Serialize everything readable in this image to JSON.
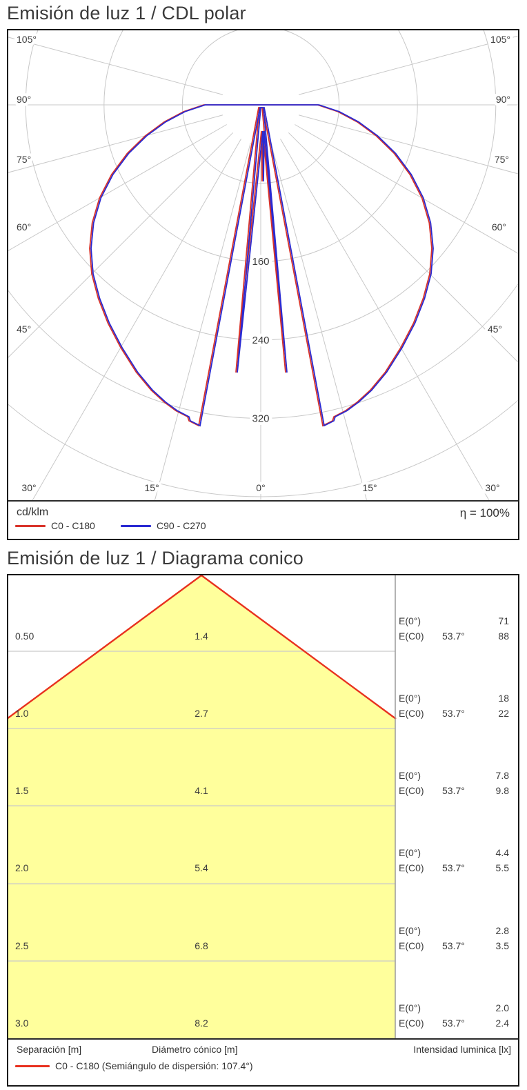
{
  "titles": {
    "polar": "Emisión de luz 1 / CDL polar",
    "cone": "Emisión de luz 1 / Diagrama conico"
  },
  "polar": {
    "unit": "cd/klm",
    "efficiency": "η = 100%",
    "legend": [
      {
        "label": "C0 - C180",
        "color": "#d9342b"
      },
      {
        "label": "C90 - C270",
        "color": "#2a2ad2"
      }
    ],
    "ring_labels": [
      "160",
      "240",
      "320"
    ],
    "angle_labels_left": [
      "105°",
      "90°",
      "75°",
      "60°",
      "45°"
    ],
    "angle_labels_right": [
      "105°",
      "90°",
      "75°",
      "60°",
      "45°"
    ],
    "angle_labels_bottom": [
      "30°",
      "15°",
      "0°",
      "15°",
      "30°"
    ],
    "curve_profile_bulb": [
      [
        90,
        58
      ],
      [
        85,
        79
      ],
      [
        80,
        100
      ],
      [
        75,
        122
      ],
      [
        70,
        145
      ],
      [
        65,
        168
      ],
      [
        60,
        190
      ],
      [
        55,
        210
      ],
      [
        50,
        228
      ],
      [
        45,
        244
      ],
      [
        40,
        258
      ],
      [
        35,
        272
      ],
      [
        30,
        286
      ],
      [
        25,
        301
      ],
      [
        21,
        312
      ],
      [
        18,
        319
      ],
      [
        15.5,
        324
      ],
      [
        13.2,
        327
      ]
    ]
  },
  "cone": {
    "e0_label": "E(0°)",
    "ec0_label": "E(C0)",
    "beam_half_angle": "53.7°",
    "rows": [
      {
        "separation": "0.50",
        "diameter": "1.4",
        "e0": "71",
        "ec0": "88"
      },
      {
        "separation": "1.0",
        "diameter": "2.7",
        "e0": "18",
        "ec0": "22"
      },
      {
        "separation": "1.5",
        "diameter": "4.1",
        "e0": "7.8",
        "ec0": "9.8"
      },
      {
        "separation": "2.0",
        "diameter": "5.4",
        "e0": "4.4",
        "ec0": "5.5"
      },
      {
        "separation": "2.5",
        "diameter": "6.8",
        "e0": "2.8",
        "ec0": "3.5"
      },
      {
        "separation": "3.0",
        "diameter": "8.2",
        "e0": "2.0",
        "ec0": "2.4"
      }
    ],
    "footer": {
      "separation": "Separación [m]",
      "diameter": "Diámetro cónico [m]",
      "intensity": "Intensidad luminica [lx]"
    },
    "legend_label": "C0 - C180 (Semiángulo de dispersión: 107.4°)",
    "colors": {
      "cone_fill": "#ffff9c",
      "cone_line": "#e8311f"
    }
  },
  "chart_data": [
    {
      "type": "line",
      "subtype": "polar-intensity",
      "title": "Emisión de luz 1 / CDL polar",
      "units": "cd/klm",
      "efficiency_pct": 100,
      "angle_ticks_deg": [
        0,
        15,
        30,
        45,
        60,
        75,
        90,
        105
      ],
      "radial_ticks": [
        80,
        160,
        240,
        320,
        400
      ],
      "legend_position": "bottom",
      "series": [
        {
          "name": "C0 - C180",
          "color": "#d9342b",
          "points_angle_vs_cd_per_klm": [
            [
              -90,
              58
            ],
            [
              -80,
              100
            ],
            [
              -70,
              145
            ],
            [
              -60,
              190
            ],
            [
              -50,
              228
            ],
            [
              -40,
              258
            ],
            [
              -30,
              286
            ],
            [
              -20,
              314
            ],
            [
              -15,
              325
            ],
            [
              -11,
              333
            ],
            [
              -8,
              240
            ],
            [
              -5,
              100
            ],
            [
              -2,
              20
            ],
            [
              0,
              50
            ],
            [
              2,
              20
            ],
            [
              5,
              100
            ],
            [
              8,
              240
            ],
            [
              11,
              333
            ],
            [
              15,
              325
            ],
            [
              20,
              314
            ],
            [
              30,
              286
            ],
            [
              40,
              258
            ],
            [
              50,
              228
            ],
            [
              60,
              190
            ],
            [
              70,
              145
            ],
            [
              80,
              100
            ],
            [
              90,
              58
            ]
          ]
        },
        {
          "name": "C90 - C270",
          "color": "#2a2ad2",
          "points_angle_vs_cd_per_klm": [
            [
              -90,
              58
            ],
            [
              -80,
              100
            ],
            [
              -70,
              145
            ],
            [
              -60,
              190
            ],
            [
              -50,
              228
            ],
            [
              -40,
              258
            ],
            [
              -30,
              286
            ],
            [
              -20,
              314
            ],
            [
              -15,
              325
            ],
            [
              -11,
              333
            ],
            [
              -8,
              240
            ],
            [
              -5,
              100
            ],
            [
              -2,
              20
            ],
            [
              0,
              50
            ],
            [
              2,
              20
            ],
            [
              5,
              100
            ],
            [
              8,
              240
            ],
            [
              11,
              333
            ],
            [
              15,
              325
            ],
            [
              20,
              314
            ],
            [
              30,
              286
            ],
            [
              40,
              258
            ],
            [
              50,
              228
            ],
            [
              60,
              190
            ],
            [
              70,
              145
            ],
            [
              80,
              100
            ],
            [
              90,
              58
            ]
          ]
        }
      ]
    },
    {
      "type": "table",
      "subtype": "cone-diagram",
      "title": "Emisión de luz 1 / Diagrama conico",
      "beam_half_angle_deg": 53.7,
      "dispersion_semiangle_deg": 107.4,
      "columns": [
        "Separación [m]",
        "Diámetro cónico [m]",
        "E(0°) [lx]",
        "E(C0) [lx]"
      ],
      "rows": [
        [
          0.5,
          1.4,
          71,
          88
        ],
        [
          1.0,
          2.7,
          18,
          22
        ],
        [
          1.5,
          4.1,
          7.8,
          9.8
        ],
        [
          2.0,
          5.4,
          4.4,
          5.5
        ],
        [
          2.5,
          6.8,
          2.8,
          3.5
        ],
        [
          3.0,
          8.2,
          2.0,
          2.4
        ]
      ]
    }
  ]
}
